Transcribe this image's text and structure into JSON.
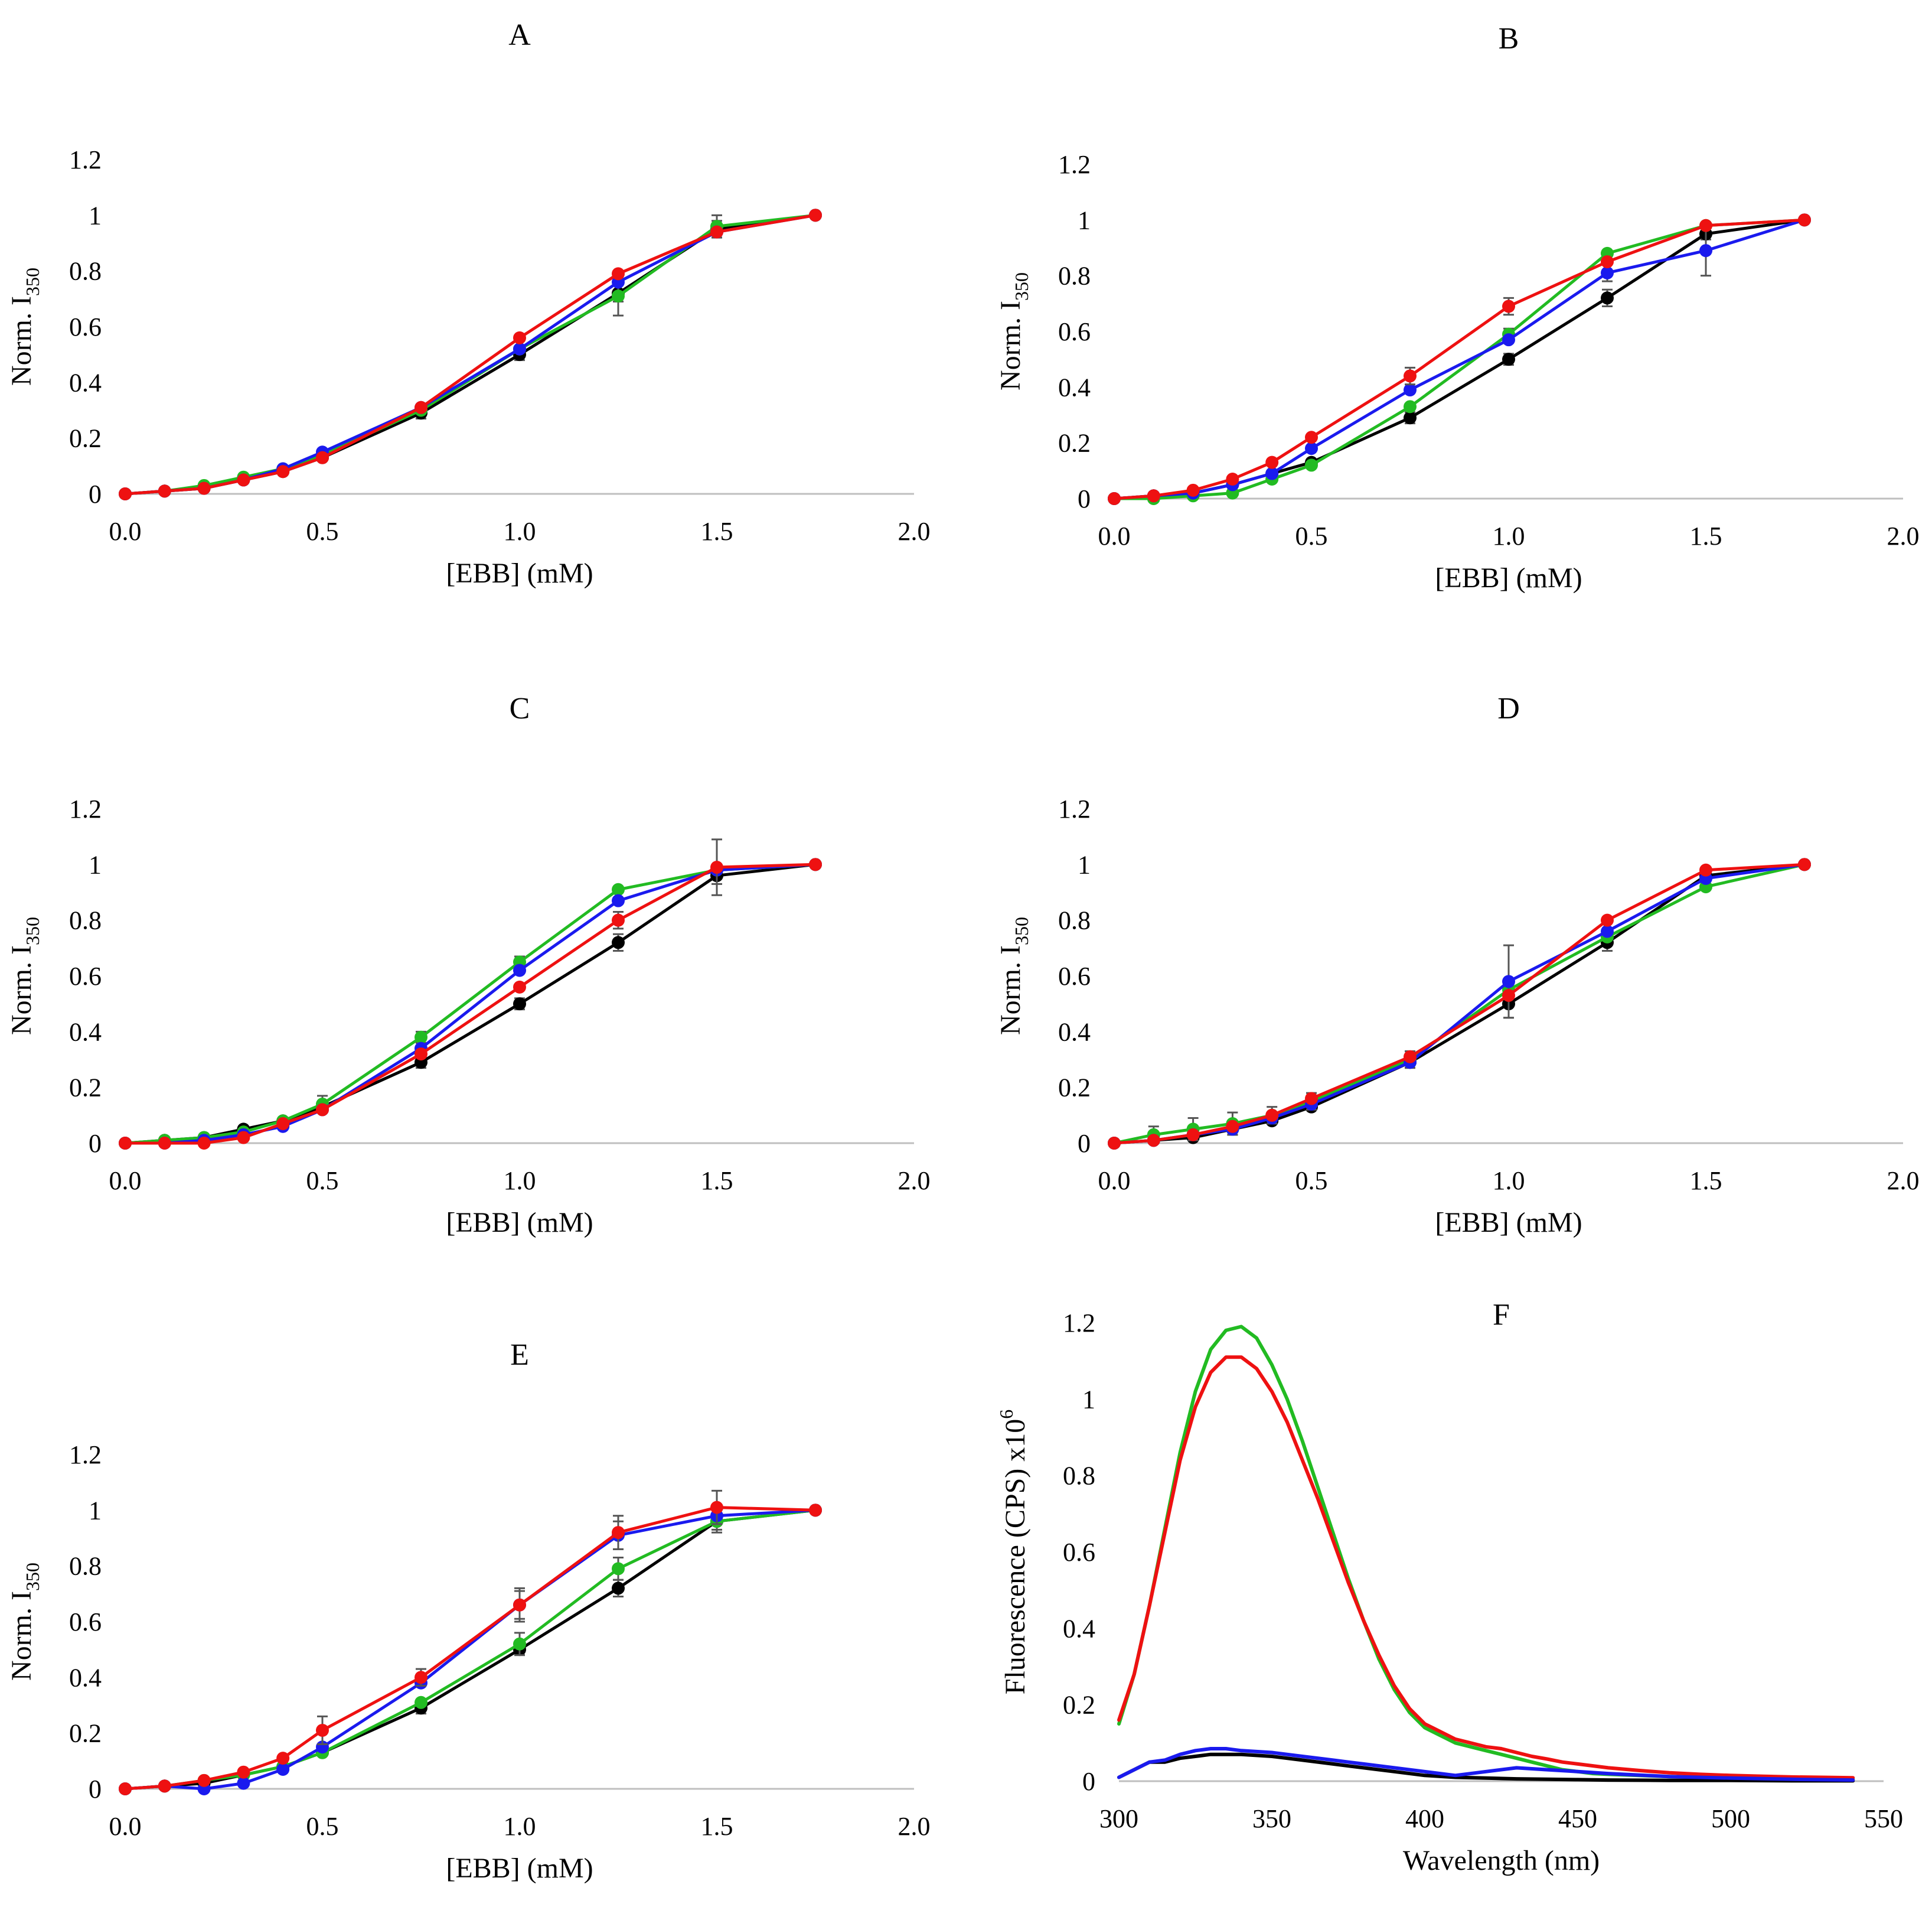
{
  "figure": {
    "colors": {
      "black": "#000000",
      "green": "#22bb22",
      "blue": "#1a1aee",
      "red": "#ee1111",
      "axis": "#bfbfbf",
      "errorbar": "#555555"
    }
  },
  "chart_data": [
    {
      "panel": "A",
      "type": "line",
      "title": "A",
      "xlabel": "[EBB]  (mM)",
      "ylabel_main": "Norm. I",
      "ylabel_sub": "350",
      "xlim": [
        0,
        2
      ],
      "ylim": [
        0,
        1.2
      ],
      "xticks": [
        "0.0",
        "0.5",
        "1.0",
        "1.5",
        "2.0"
      ],
      "yticks": [
        "0",
        "0.2",
        "0.4",
        "0.6",
        "0.8",
        "1",
        "1.2"
      ],
      "x": [
        0,
        0.1,
        0.2,
        0.3,
        0.4,
        0.5,
        0.75,
        1.0,
        1.25,
        1.5,
        1.75
      ],
      "series": [
        {
          "color": "black",
          "values": [
            0,
            0.01,
            0.02,
            0.05,
            0.08,
            0.13,
            0.29,
            0.5,
            0.72,
            0.95,
            1.0
          ],
          "errors": [
            0,
            0,
            0,
            0,
            0,
            0,
            0.02,
            0.02,
            0.03,
            0.03,
            0
          ]
        },
        {
          "color": "green",
          "values": [
            0,
            0.01,
            0.03,
            0.06,
            0.09,
            0.14,
            0.3,
            0.52,
            0.71,
            0.96,
            1.0
          ],
          "errors": [
            0,
            0,
            0,
            0,
            0,
            0,
            0,
            0,
            0.07,
            0.04,
            0
          ]
        },
        {
          "color": "blue",
          "values": [
            0,
            0.01,
            0.02,
            0.05,
            0.09,
            0.15,
            0.31,
            0.52,
            0.76,
            0.94,
            1.0
          ],
          "errors": [
            0,
            0,
            0,
            0,
            0,
            0,
            0,
            0,
            0,
            0,
            0
          ]
        },
        {
          "color": "red",
          "values": [
            0,
            0.01,
            0.02,
            0.05,
            0.08,
            0.13,
            0.31,
            0.56,
            0.79,
            0.94,
            1.0
          ],
          "errors": [
            0,
            0,
            0,
            0,
            0,
            0,
            0,
            0,
            0,
            0,
            0
          ]
        }
      ]
    },
    {
      "panel": "B",
      "type": "line",
      "title": "B",
      "xlabel": "[EBB]  (mM)",
      "ylabel_main": "Norm. I",
      "ylabel_sub": "350",
      "xlim": [
        0,
        2
      ],
      "ylim": [
        0,
        1.2
      ],
      "xticks": [
        "0.0",
        "0.5",
        "1.0",
        "1.5",
        "2.0"
      ],
      "yticks": [
        "0",
        "0.2",
        "0.4",
        "0.6",
        "0.8",
        "1",
        "1.2"
      ],
      "x": [
        0,
        0.1,
        0.2,
        0.3,
        0.4,
        0.5,
        0.75,
        1.0,
        1.25,
        1.5,
        1.75
      ],
      "series": [
        {
          "color": "black",
          "values": [
            0,
            0.01,
            0.02,
            0.05,
            0.09,
            0.13,
            0.29,
            0.5,
            0.72,
            0.95,
            1.0
          ],
          "errors": [
            0,
            0,
            0,
            0,
            0,
            0,
            0.02,
            0.02,
            0.03,
            0.02,
            0
          ]
        },
        {
          "color": "green",
          "values": [
            0,
            0.0,
            0.01,
            0.02,
            0.07,
            0.12,
            0.33,
            0.59,
            0.88,
            0.98,
            1.0
          ],
          "errors": [
            0,
            0,
            0,
            0,
            0,
            0,
            0,
            0.02,
            0,
            0,
            0
          ]
        },
        {
          "color": "blue",
          "values": [
            0,
            0.01,
            0.02,
            0.05,
            0.09,
            0.18,
            0.39,
            0.57,
            0.81,
            0.89,
            1.0
          ],
          "errors": [
            0,
            0,
            0,
            0,
            0,
            0,
            0,
            0,
            0.03,
            0.09,
            0
          ]
        },
        {
          "color": "red",
          "values": [
            0,
            0.01,
            0.03,
            0.07,
            0.13,
            0.22,
            0.44,
            0.69,
            0.85,
            0.98,
            1.0
          ],
          "errors": [
            0,
            0,
            0,
            0,
            0,
            0,
            0.03,
            0.03,
            0,
            0,
            0
          ]
        }
      ]
    },
    {
      "panel": "C",
      "type": "line",
      "title": "C",
      "xlabel": "[EBB]  (mM)",
      "ylabel_main": "Norm. I",
      "ylabel_sub": "350",
      "xlim": [
        0,
        2
      ],
      "ylim": [
        0,
        1.2
      ],
      "xticks": [
        "0.0",
        "0.5",
        "1.0",
        "1.5",
        "2.0"
      ],
      "yticks": [
        "0",
        "0.2",
        "0.4",
        "0.6",
        "0.8",
        "1",
        "1.2"
      ],
      "x": [
        0,
        0.1,
        0.2,
        0.3,
        0.4,
        0.5,
        0.75,
        1.0,
        1.25,
        1.5,
        1.75
      ],
      "series": [
        {
          "color": "black",
          "values": [
            0,
            0.01,
            0.02,
            0.05,
            0.08,
            0.13,
            0.29,
            0.5,
            0.72,
            0.96,
            1.0
          ],
          "errors": [
            0,
            0,
            0,
            0,
            0,
            0,
            0.02,
            0.02,
            0.03,
            0.03,
            0
          ]
        },
        {
          "color": "green",
          "values": [
            0,
            0.01,
            0.02,
            0.04,
            0.08,
            0.14,
            0.38,
            0.65,
            0.91,
            0.98,
            1.0
          ],
          "errors": [
            0,
            0,
            0,
            0,
            0,
            0.03,
            0.02,
            0.02,
            0,
            0,
            0
          ]
        },
        {
          "color": "blue",
          "values": [
            0,
            0.0,
            0.01,
            0.03,
            0.06,
            0.12,
            0.34,
            0.62,
            0.87,
            0.98,
            1.0
          ],
          "errors": [
            0,
            0,
            0,
            0,
            0,
            0,
            0,
            0,
            0,
            0,
            0
          ]
        },
        {
          "color": "red",
          "values": [
            0,
            0.0,
            0.0,
            0.02,
            0.07,
            0.12,
            0.32,
            0.56,
            0.8,
            0.99,
            1.0
          ],
          "errors": [
            0,
            0,
            0,
            0,
            0,
            0,
            0,
            0,
            0.03,
            0.1,
            0
          ]
        }
      ]
    },
    {
      "panel": "D",
      "type": "line",
      "title": "D",
      "xlabel": "[EBB]  (mM)",
      "ylabel_main": "Norm. I",
      "ylabel_sub": "350",
      "xlim": [
        0,
        2
      ],
      "ylim": [
        0,
        1.2
      ],
      "xticks": [
        "0.0",
        "0.5",
        "1.0",
        "1.5",
        "2.0"
      ],
      "yticks": [
        "0",
        "0.2",
        "0.4",
        "0.6",
        "0.8",
        "1",
        "1.2"
      ],
      "x": [
        0,
        0.1,
        0.2,
        0.3,
        0.4,
        0.5,
        0.75,
        1.0,
        1.25,
        1.5,
        1.75
      ],
      "series": [
        {
          "color": "black",
          "values": [
            0,
            0.01,
            0.02,
            0.05,
            0.08,
            0.13,
            0.29,
            0.5,
            0.72,
            0.96,
            1.0
          ],
          "errors": [
            0,
            0,
            0,
            0.02,
            0,
            0,
            0.02,
            0.05,
            0.03,
            0,
            0
          ]
        },
        {
          "color": "green",
          "values": [
            0,
            0.03,
            0.05,
            0.07,
            0.1,
            0.15,
            0.3,
            0.55,
            0.74,
            0.92,
            1.0
          ],
          "errors": [
            0,
            0.03,
            0.04,
            0.04,
            0.03,
            0.03,
            0.03,
            0,
            0,
            0,
            0
          ]
        },
        {
          "color": "blue",
          "values": [
            0,
            0.01,
            0.03,
            0.05,
            0.09,
            0.14,
            0.29,
            0.58,
            0.76,
            0.95,
            1.0
          ],
          "errors": [
            0,
            0,
            0,
            0,
            0,
            0,
            0,
            0.13,
            0,
            0,
            0
          ]
        },
        {
          "color": "red",
          "values": [
            0,
            0.01,
            0.03,
            0.06,
            0.1,
            0.16,
            0.31,
            0.53,
            0.8,
            0.98,
            1.0
          ],
          "errors": [
            0,
            0,
            0,
            0,
            0,
            0,
            0,
            0,
            0,
            0,
            0
          ]
        }
      ]
    },
    {
      "panel": "E",
      "type": "line",
      "title": "E",
      "xlabel": "[EBB]  (mM)",
      "ylabel_main": "Norm. I",
      "ylabel_sub": "350",
      "xlim": [
        0,
        2
      ],
      "ylim": [
        0,
        1.2
      ],
      "xticks": [
        "0.0",
        "0.5",
        "1.0",
        "1.5",
        "2.0"
      ],
      "yticks": [
        "0",
        "0.2",
        "0.4",
        "0.6",
        "0.8",
        "1",
        "1.2"
      ],
      "x": [
        0,
        0.1,
        0.2,
        0.3,
        0.4,
        0.5,
        0.75,
        1.0,
        1.25,
        1.5,
        1.75
      ],
      "series": [
        {
          "color": "black",
          "values": [
            0,
            0.01,
            0.02,
            0.05,
            0.08,
            0.13,
            0.29,
            0.5,
            0.72,
            0.96,
            1.0
          ],
          "errors": [
            0,
            0,
            0,
            0,
            0,
            0,
            0.02,
            0.02,
            0.03,
            0.04,
            0
          ]
        },
        {
          "color": "green",
          "values": [
            0,
            0.01,
            0.03,
            0.05,
            0.08,
            0.13,
            0.31,
            0.52,
            0.79,
            0.96,
            1.0
          ],
          "errors": [
            0,
            0,
            0,
            0,
            0,
            0,
            0,
            0.04,
            0.04,
            0.03,
            0
          ]
        },
        {
          "color": "blue",
          "values": [
            0,
            0.01,
            0.0,
            0.02,
            0.07,
            0.15,
            0.38,
            0.66,
            0.91,
            0.98,
            1.0
          ],
          "errors": [
            0,
            0,
            0,
            0,
            0,
            0,
            0,
            0.05,
            0.05,
            0,
            0
          ]
        },
        {
          "color": "red",
          "values": [
            0,
            0.01,
            0.03,
            0.06,
            0.11,
            0.21,
            0.4,
            0.66,
            0.92,
            1.01,
            1.0
          ],
          "errors": [
            0,
            0,
            0,
            0,
            0,
            0.05,
            0.03,
            0.06,
            0.06,
            0.06,
            0
          ]
        }
      ]
    },
    {
      "panel": "F",
      "type": "line",
      "title": "F",
      "xlabel": "Wavelength  (nm)",
      "ylabel_main": "Fluorescence  (CPS)  x10",
      "ylabel_sup": "6",
      "xlim": [
        300,
        550
      ],
      "ylim": [
        0,
        1.2
      ],
      "xticks": [
        "300",
        "350",
        "400",
        "450",
        "500",
        "550"
      ],
      "yticks": [
        "0",
        "0.2",
        "0.4",
        "0.6",
        "0.8",
        "1",
        "1.2"
      ],
      "series": [
        {
          "color": "green",
          "x": [
            300,
            305,
            310,
            315,
            320,
            325,
            330,
            335,
            340,
            345,
            350,
            355,
            360,
            365,
            370,
            375,
            380,
            385,
            390,
            395,
            400,
            405,
            410,
            415,
            420,
            425,
            430,
            435,
            440,
            445,
            450,
            455,
            460,
            470,
            480,
            490,
            500,
            510,
            520,
            530,
            540
          ],
          "values": [
            0.15,
            0.28,
            0.46,
            0.66,
            0.86,
            1.02,
            1.13,
            1.18,
            1.19,
            1.16,
            1.09,
            1.0,
            0.89,
            0.77,
            0.65,
            0.53,
            0.42,
            0.32,
            0.24,
            0.18,
            0.14,
            0.12,
            0.1,
            0.09,
            0.08,
            0.07,
            0.06,
            0.05,
            0.04,
            0.03,
            0.025,
            0.02,
            0.018,
            0.015,
            0.012,
            0.01,
            0.009,
            0.008,
            0.007,
            0.006,
            0.005
          ]
        },
        {
          "color": "red",
          "x": [
            300,
            305,
            310,
            315,
            320,
            325,
            330,
            335,
            340,
            345,
            350,
            355,
            360,
            365,
            370,
            375,
            380,
            385,
            390,
            395,
            400,
            405,
            410,
            415,
            420,
            425,
            430,
            435,
            440,
            445,
            450,
            455,
            460,
            470,
            480,
            490,
            500,
            510,
            520,
            530,
            540
          ],
          "values": [
            0.16,
            0.28,
            0.46,
            0.65,
            0.84,
            0.98,
            1.07,
            1.11,
            1.11,
            1.08,
            1.02,
            0.94,
            0.84,
            0.74,
            0.63,
            0.52,
            0.42,
            0.33,
            0.25,
            0.19,
            0.15,
            0.13,
            0.11,
            0.1,
            0.09,
            0.085,
            0.075,
            0.065,
            0.058,
            0.05,
            0.045,
            0.04,
            0.035,
            0.028,
            0.022,
            0.018,
            0.015,
            0.013,
            0.011,
            0.01,
            0.009
          ]
        },
        {
          "color": "black",
          "x": [
            300,
            305,
            310,
            315,
            320,
            325,
            330,
            335,
            340,
            350,
            360,
            370,
            380,
            390,
            400,
            410,
            420,
            430,
            440,
            450,
            460,
            480,
            500,
            520,
            540
          ],
          "values": [
            0.01,
            0.03,
            0.05,
            0.05,
            0.06,
            0.065,
            0.07,
            0.07,
            0.07,
            0.065,
            0.055,
            0.045,
            0.035,
            0.025,
            0.015,
            0.01,
            0.008,
            0.006,
            0.005,
            0.004,
            0.003,
            0.002,
            0.002,
            0.001,
            0.001
          ]
        },
        {
          "color": "blue",
          "x": [
            300,
            305,
            310,
            315,
            320,
            325,
            330,
            335,
            340,
            350,
            360,
            370,
            380,
            390,
            400,
            410,
            420,
            430,
            440,
            450,
            460,
            480,
            500,
            520,
            540
          ],
          "values": [
            0.01,
            0.03,
            0.05,
            0.055,
            0.07,
            0.08,
            0.085,
            0.085,
            0.08,
            0.075,
            0.065,
            0.055,
            0.045,
            0.035,
            0.025,
            0.015,
            0.025,
            0.035,
            0.03,
            0.025,
            0.02,
            0.012,
            0.008,
            0.005,
            0.003
          ]
        }
      ]
    }
  ]
}
